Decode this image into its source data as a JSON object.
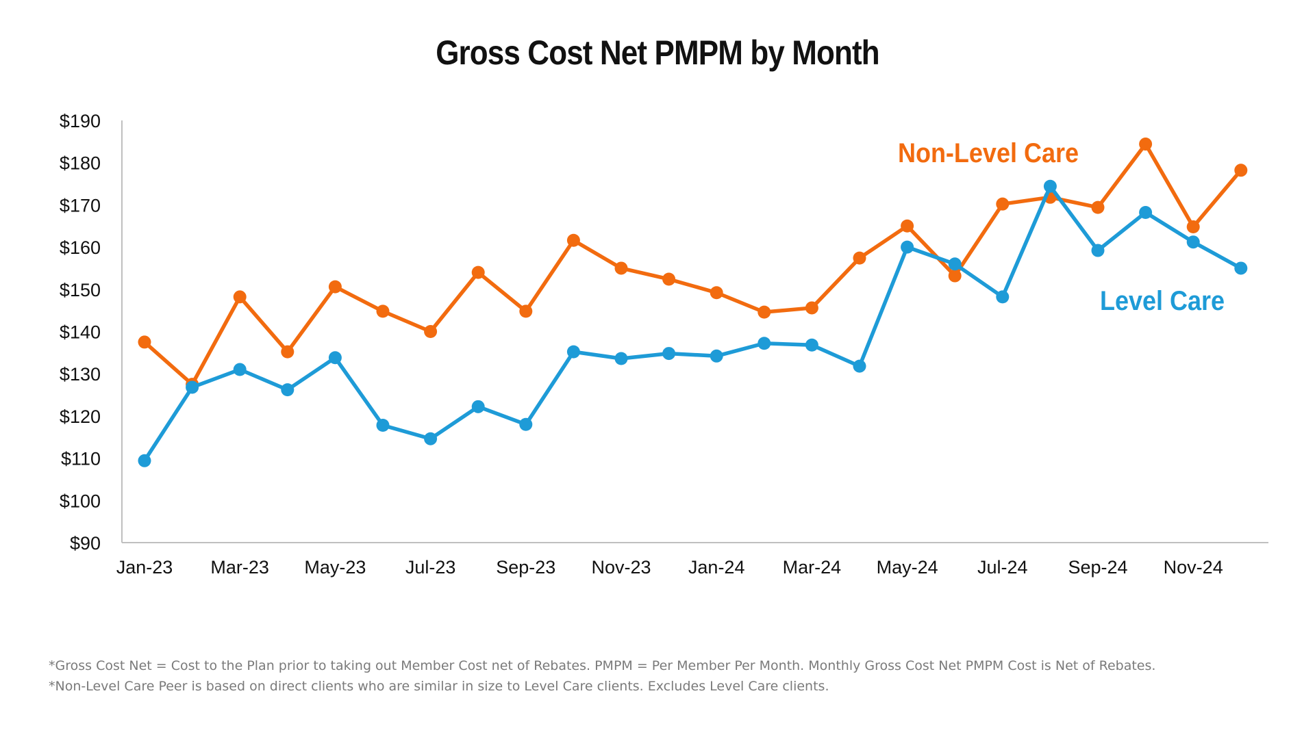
{
  "chart_data": {
    "type": "line",
    "title": "Gross Cost Net PMPM by Month",
    "xlabel": "",
    "ylabel": "",
    "ylim": [
      90,
      190
    ],
    "ytick_step": 10,
    "ytick_labels": [
      "$90",
      "$100",
      "$110",
      "$120",
      "$130",
      "$140",
      "$150",
      "$160",
      "$170",
      "$180",
      "$190"
    ],
    "categories": [
      "Jan-23",
      "Feb-23",
      "Mar-23",
      "Apr-23",
      "May-23",
      "Jun-23",
      "Jul-23",
      "Aug-23",
      "Sep-23",
      "Oct-23",
      "Nov-23",
      "Dec-23",
      "Jan-24",
      "Feb-24",
      "Mar-24",
      "Apr-24",
      "May-24",
      "Jun-24",
      "Jul-24",
      "Aug-24",
      "Sep-24",
      "Oct-24",
      "Nov-24",
      "Dec-24"
    ],
    "xtick_labels": [
      "Jan-23",
      "Mar-23",
      "May-23",
      "Jul-23",
      "Sep-23",
      "Nov-23",
      "Jan-24",
      "Mar-24",
      "May-24",
      "Jul-24",
      "Sep-24",
      "Nov-24"
    ],
    "grid": false,
    "legend": "none",
    "series": [
      {
        "name": "Non-Level Care",
        "color": "#F26B0F",
        "label_text": "Non-Level Care",
        "values": [
          137.5,
          127.5,
          148.2,
          135.2,
          150.6,
          144.8,
          140.0,
          154.0,
          144.8,
          161.6,
          155.0,
          152.4,
          149.2,
          144.6,
          145.6,
          157.4,
          165.0,
          153.2,
          170.2,
          171.8,
          169.4,
          184.4,
          164.8,
          178.2
        ]
      },
      {
        "name": "Level Care",
        "color": "#1E9BD7",
        "label_text": "Level Care",
        "values": [
          109.4,
          126.8,
          131.0,
          126.2,
          133.8,
          117.8,
          114.6,
          122.2,
          118.0,
          135.2,
          133.6,
          134.8,
          134.2,
          137.2,
          136.8,
          131.8,
          160.0,
          156.0,
          148.2,
          174.4,
          159.2,
          168.2,
          161.2,
          155.0
        ]
      }
    ]
  },
  "footnotes": [
    "*Gross Cost Net = Cost to the Plan prior to taking out Member Cost net of Rebates. PMPM = Per Member Per Month. Monthly Gross Cost Net PMPM Cost is Net of Rebates.",
    "*Non-Level Care Peer is based on direct clients who are similar in size to Level Care clients. Excludes Level Care clients."
  ]
}
